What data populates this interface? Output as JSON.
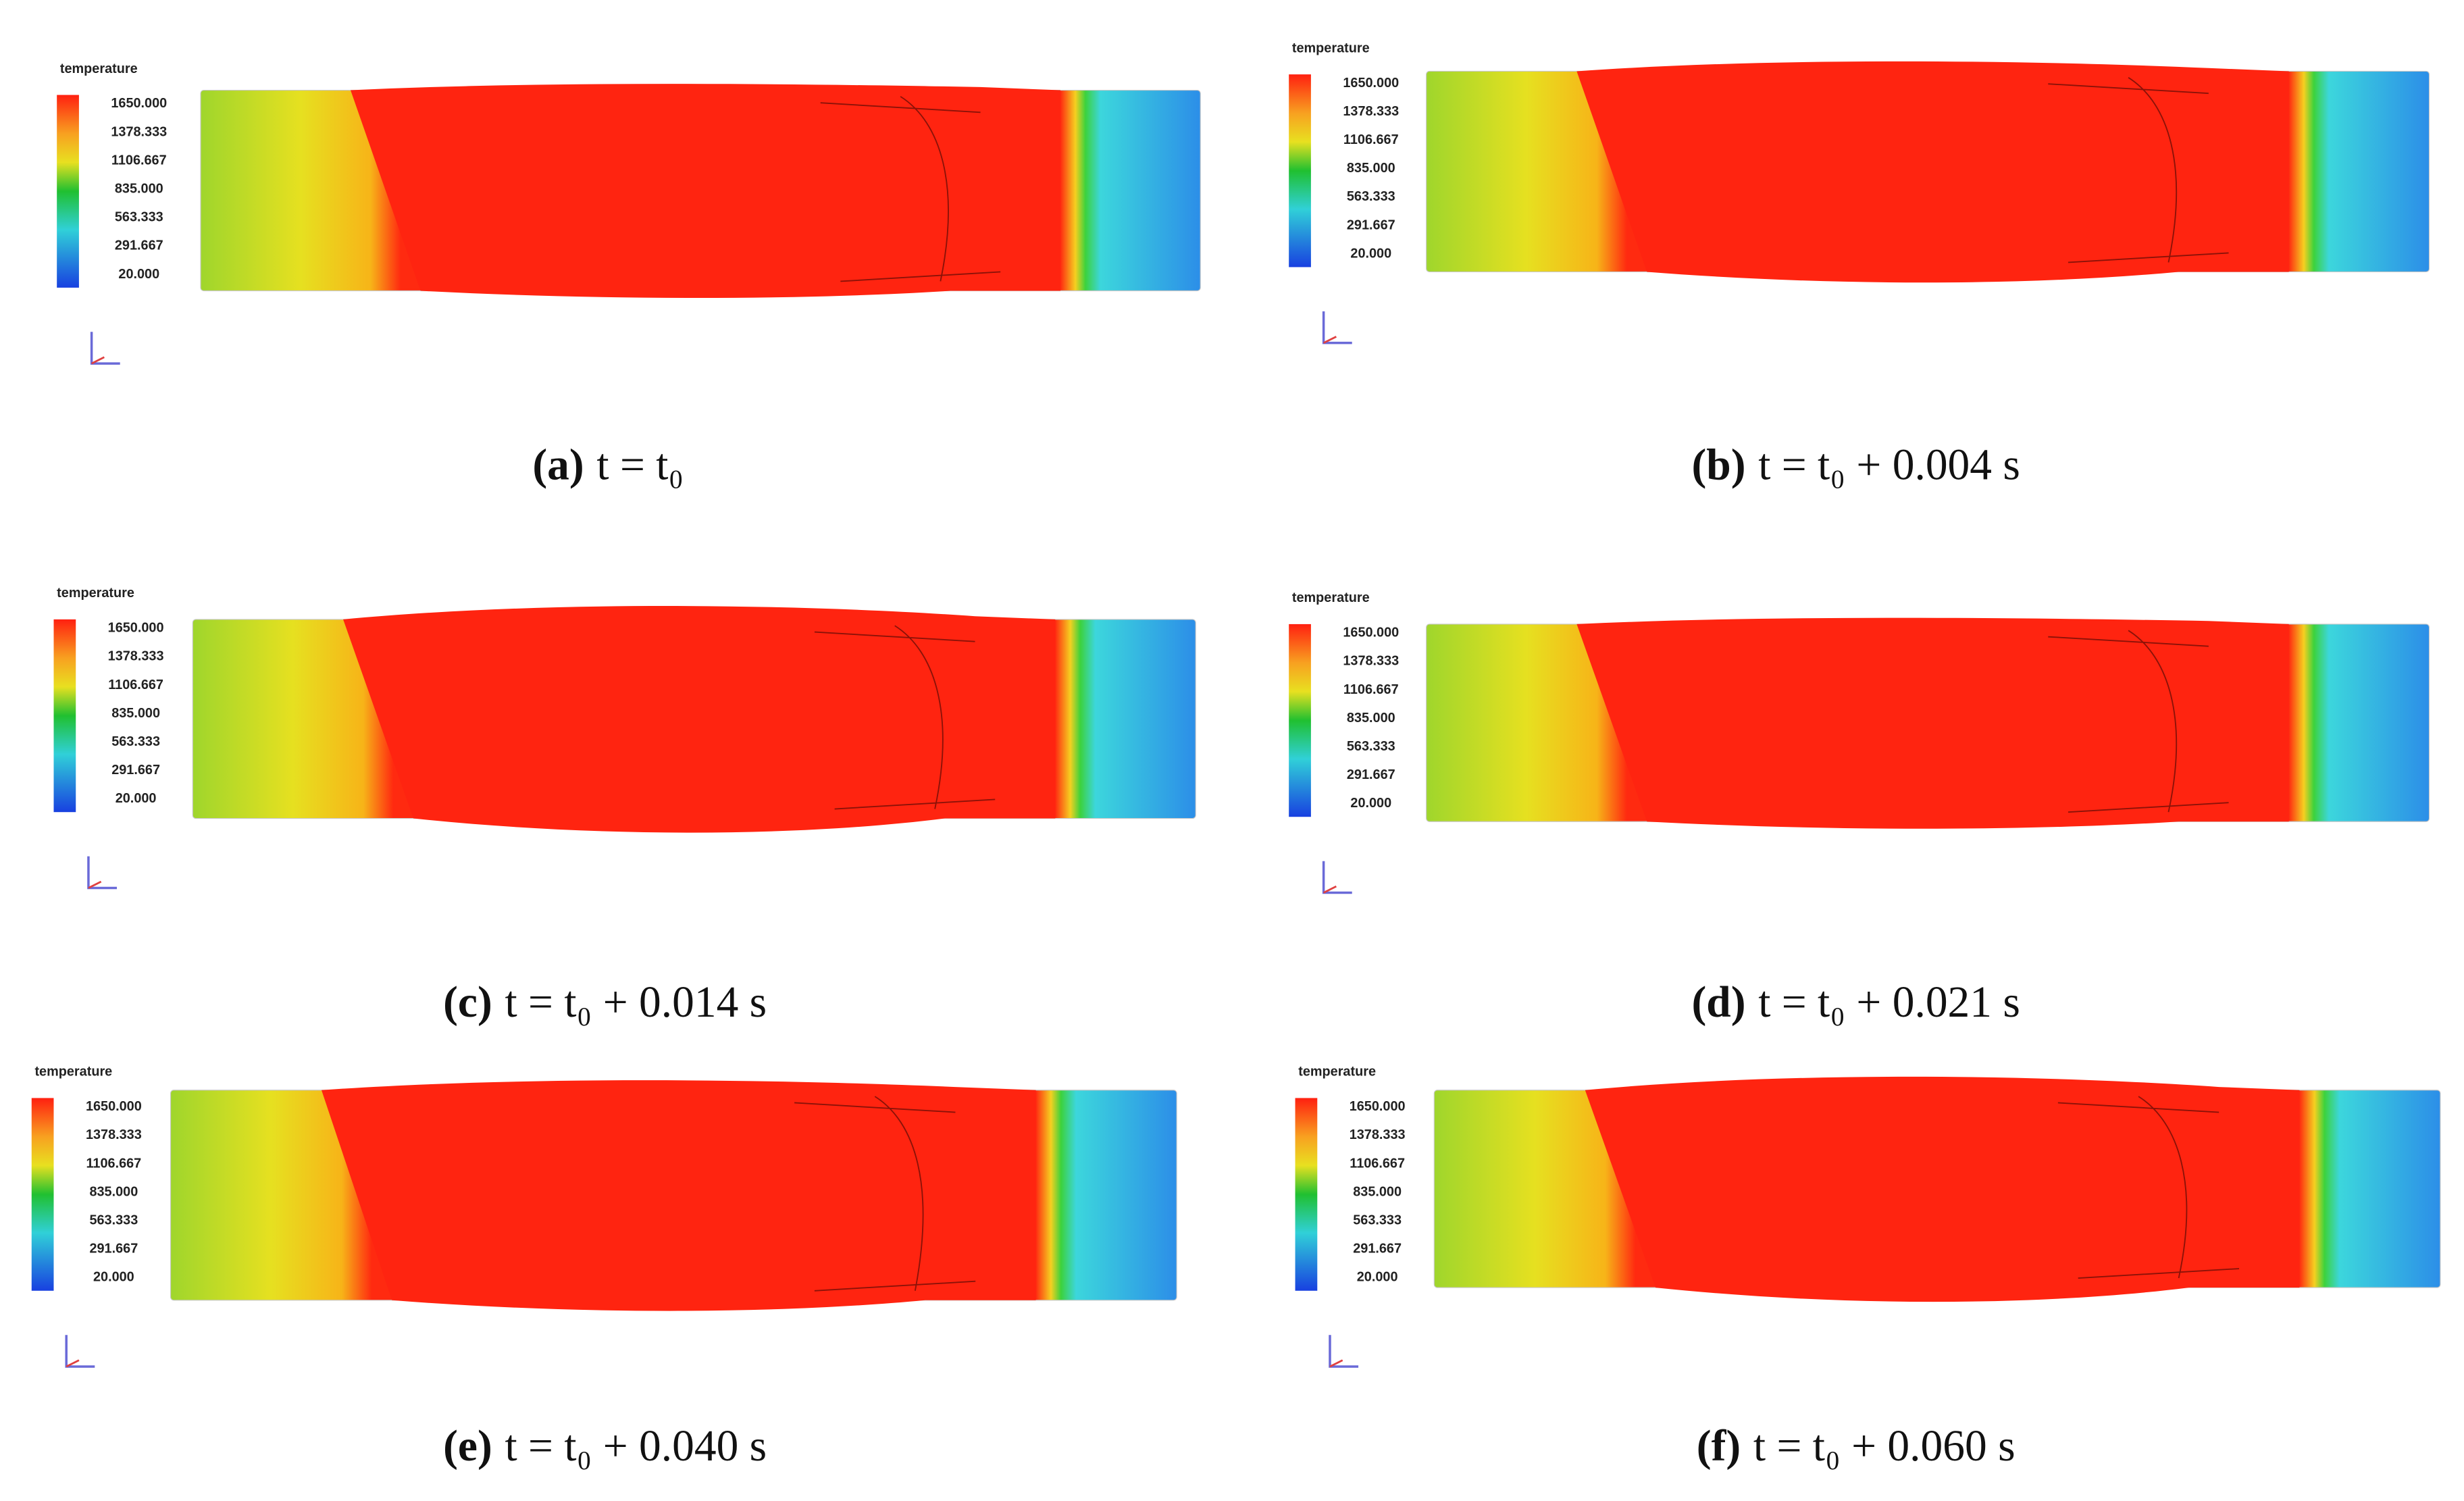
{
  "legend": {
    "title": "temperature",
    "labels": [
      "1650.000",
      "1378.333",
      "1106.667",
      "835.000",
      "563.333",
      "291.667",
      "20.000"
    ]
  },
  "panels": [
    {
      "label": "(a)",
      "caption": "t = t₀"
    },
    {
      "label": "(b)",
      "caption": "t = t₀ + 0.004 s"
    },
    {
      "label": "(c)",
      "caption": "t = t₀ + 0.014 s"
    },
    {
      "label": "(d)",
      "caption": "t = t₀ + 0.021 s"
    },
    {
      "label": "(e)",
      "caption": "t = t₀ + 0.040 s"
    },
    {
      "label": "(f)",
      "caption": "t = t₀ + 0.060 s"
    }
  ]
}
